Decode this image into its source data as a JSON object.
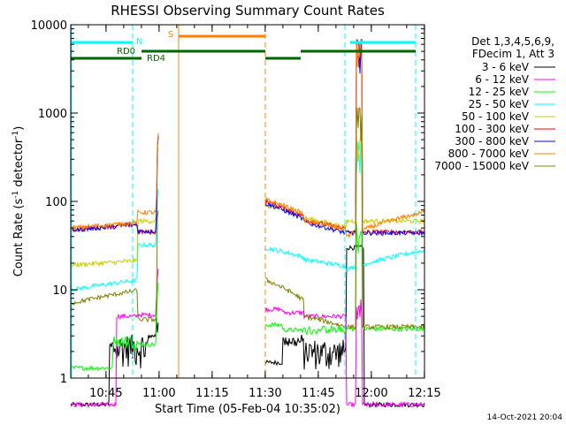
{
  "chart_data": {
    "type": "line",
    "title": "RHESSI Observing Summary Count Rates",
    "xlabel": "Start Time (05-Feb-04 10:35:02)",
    "ylabel_main": "Count Rate (s",
    "ylabel_sup1": "-1",
    "ylabel_mid": " detector",
    "ylabel_sup2": "-1",
    "ylabel_end": ")",
    "x_start_min": 0,
    "x_end_min": 100,
    "y_scale": "log",
    "ylim": [
      1,
      10000
    ],
    "y_ticks": [
      {
        "value": 1,
        "label": "1"
      },
      {
        "value": 10,
        "label": "10"
      },
      {
        "value": 100,
        "label": "100"
      },
      {
        "value": 1000,
        "label": "1000"
      },
      {
        "value": 10000,
        "label": "10000"
      }
    ],
    "x_ticks": [
      {
        "min": 9.97,
        "label": "10:45"
      },
      {
        "min": 24.97,
        "label": "11:00"
      },
      {
        "min": 39.97,
        "label": "11:15"
      },
      {
        "min": 54.97,
        "label": "11:30"
      },
      {
        "min": 69.97,
        "label": "11:45"
      },
      {
        "min": 84.97,
        "label": "12:00"
      },
      {
        "min": 99.97,
        "label": "12:15"
      }
    ],
    "legend_header": [
      "Det 1,3,4,5,6,9,",
      "FDecim 1, Att 3"
    ],
    "legend_placement": "right",
    "series": [
      {
        "name": "3 - 6 keV",
        "color": "#000000"
      },
      {
        "name": "6 - 12 keV",
        "color": "#ff00ff"
      },
      {
        "name": "12 - 25 keV",
        "color": "#00ff00"
      },
      {
        "name": "25 - 50 keV",
        "color": "#00ffff"
      },
      {
        "name": "50 - 100 keV",
        "color": "#cccc00"
      },
      {
        "name": "100 - 300 keV",
        "color": "#ff0000"
      },
      {
        "name": "300 - 800 keV",
        "color": "#0000ff"
      },
      {
        "name": "800 - 7000 keV",
        "color": "#ff8000"
      },
      {
        "name": "7000 - 15000 keV",
        "color": "#808000"
      }
    ],
    "annotations": [
      {
        "label": "N",
        "color": "#00ffff"
      },
      {
        "label": "S",
        "color": "#ff8000"
      },
      {
        "label": "RD0",
        "color": "#006600"
      },
      {
        "label": "RD4",
        "color": "#006600"
      }
    ],
    "footer_date": "14-Oct-2021 20:04"
  }
}
